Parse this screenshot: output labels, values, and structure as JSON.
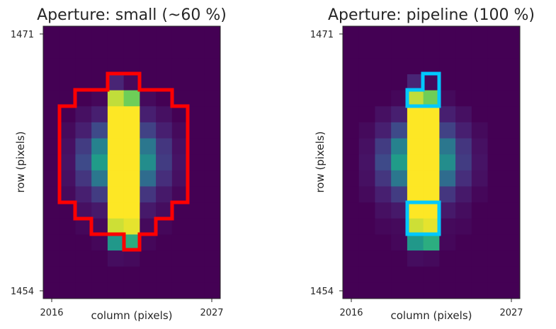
{
  "chart_data": [
    {
      "type": "heatmap",
      "title": "Aperture: small (~60 %)",
      "xlabel": "column (pixels)",
      "ylabel": "row (pixels)",
      "xlim": [
        2016,
        2027
      ],
      "ylim": [
        1454,
        1471
      ],
      "xticks": [
        "2016",
        "2027"
      ],
      "yticks": [
        "1471",
        "1454"
      ],
      "colormap": "viridis",
      "aperture_color": "#ff0000",
      "aperture_pixels": "small aperture (~60 % of pixels)"
    },
    {
      "type": "heatmap",
      "title": "Aperture: pipeline (100 %)",
      "xlabel": "column (pixels)",
      "ylabel": "row (pixels)",
      "xlim": [
        2016,
        2027
      ],
      "ylim": [
        1454,
        1471
      ],
      "xticks": [
        "2016",
        "2027"
      ],
      "yticks": [
        "1471",
        "1454"
      ],
      "colormap": "viridis",
      "aperture_color": "#00c8ff",
      "aperture_pixels": "pipeline aperture (100 %)"
    }
  ],
  "flux_grid": [
    [
      0,
      0,
      0,
      0,
      0,
      0,
      0,
      0,
      0,
      0,
      0
    ],
    [
      0,
      0,
      0,
      0,
      0,
      0,
      0,
      0,
      0,
      0,
      0
    ],
    [
      0,
      0,
      0,
      0,
      0,
      0,
      0,
      0,
      0,
      0,
      0
    ],
    [
      0,
      0,
      0,
      0,
      0.12,
      0.03,
      0,
      0,
      0,
      0,
      0
    ],
    [
      0,
      0,
      0,
      0.02,
      0.95,
      0.88,
      0.03,
      0,
      0,
      0,
      0
    ],
    [
      0,
      0,
      0.05,
      0.1,
      1,
      1,
      0.1,
      0.05,
      0,
      0,
      0
    ],
    [
      0,
      0.03,
      0.1,
      0.25,
      1,
      1,
      0.22,
      0.1,
      0.03,
      0,
      0
    ],
    [
      0,
      0.05,
      0.2,
      0.5,
      1,
      1,
      0.45,
      0.18,
      0.05,
      0,
      0
    ],
    [
      0,
      0.06,
      0.25,
      0.62,
      1,
      1,
      0.55,
      0.2,
      0.06,
      0,
      0
    ],
    [
      0,
      0.05,
      0.18,
      0.45,
      1,
      1,
      0.4,
      0.15,
      0.05,
      0,
      0
    ],
    [
      0,
      0.03,
      0.1,
      0.2,
      1,
      1,
      0.18,
      0.08,
      0.02,
      0,
      0
    ],
    [
      0,
      0,
      0.05,
      0.08,
      1,
      1,
      0.08,
      0.04,
      0,
      0,
      0
    ],
    [
      0,
      0,
      0.02,
      0.03,
      0.96,
      0.98,
      0.03,
      0.02,
      0,
      0,
      0
    ],
    [
      0,
      0,
      0,
      0.02,
      0.6,
      0.7,
      0.02,
      0,
      0,
      0,
      0
    ],
    [
      0,
      0,
      0,
      0,
      0.04,
      0.03,
      0,
      0,
      0,
      0,
      0
    ],
    [
      0,
      0,
      0,
      0,
      0,
      0,
      0,
      0,
      0,
      0,
      0
    ],
    [
      0,
      0,
      0,
      0,
      0,
      0,
      0,
      0,
      0,
      0,
      0
    ]
  ]
}
